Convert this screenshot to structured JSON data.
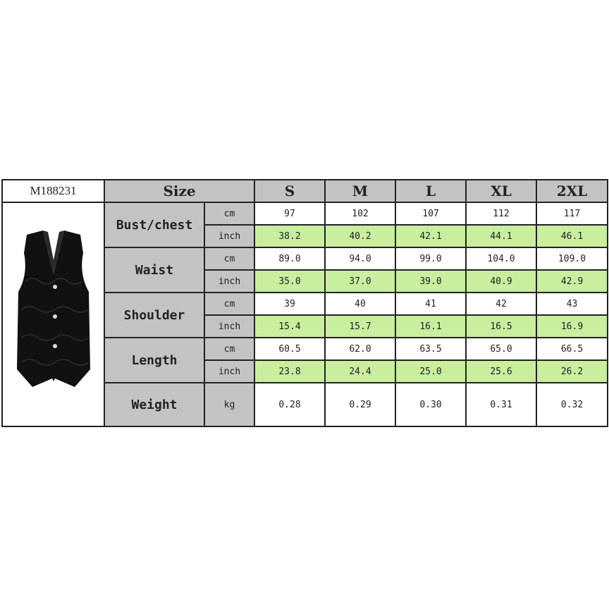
{
  "product_code": "M188231",
  "header": {
    "size_label": "Size",
    "sizes": [
      "S",
      "M",
      "L",
      "XL",
      "2XL"
    ]
  },
  "product_image": "black paisley vest",
  "colors": {
    "header_gray": "#c3c3c3",
    "inch_row_green": "#c8ee9e"
  },
  "rows": [
    {
      "label": "Bust/chest",
      "units": [
        {
          "unit": "cm",
          "values": [
            "97",
            "102",
            "107",
            "112",
            "117"
          ]
        },
        {
          "unit": "inch",
          "values": [
            "38.2",
            "40.2",
            "42.1",
            "44.1",
            "46.1"
          ]
        }
      ]
    },
    {
      "label": "Waist",
      "units": [
        {
          "unit": "cm",
          "values": [
            "89.0",
            "94.0",
            "99.0",
            "104.0",
            "109.0"
          ]
        },
        {
          "unit": "inch",
          "values": [
            "35.0",
            "37.0",
            "39.0",
            "40.9",
            "42.9"
          ]
        }
      ]
    },
    {
      "label": "Shoulder",
      "units": [
        {
          "unit": "cm",
          "values": [
            "39",
            "40",
            "41",
            "42",
            "43"
          ]
        },
        {
          "unit": "inch",
          "values": [
            "15.4",
            "15.7",
            "16.1",
            "16.5",
            "16.9"
          ]
        }
      ]
    },
    {
      "label": "Length",
      "units": [
        {
          "unit": "cm",
          "values": [
            "60.5",
            "62.0",
            "63.5",
            "65.0",
            "66.5"
          ]
        },
        {
          "unit": "inch",
          "values": [
            "23.8",
            "24.4",
            "25.0",
            "25.6",
            "26.2"
          ]
        }
      ]
    },
    {
      "label": "Weight",
      "units": [
        {
          "unit": "kg",
          "values": [
            "0.28",
            "0.29",
            "0.30",
            "0.31",
            "0.32"
          ]
        }
      ]
    }
  ]
}
